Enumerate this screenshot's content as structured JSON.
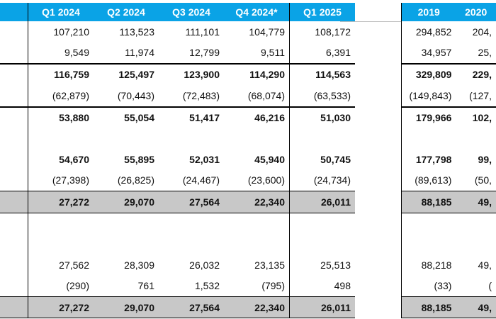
{
  "headers_left": [
    "Q1 2024",
    "Q2 2024",
    "Q3 2024",
    "Q4 2024*",
    "Q1 2025"
  ],
  "headers_right": [
    "2019",
    "2020"
  ],
  "rows": [
    {
      "style": "normal",
      "left": [
        "107,210",
        "113,523",
        "111,101",
        "104,779",
        "108,172"
      ],
      "right": [
        "294,852",
        "204,"
      ]
    },
    {
      "style": "normal",
      "left": [
        "9,549",
        "11,974",
        "12,799",
        "9,511",
        "6,391"
      ],
      "right": [
        "34,957",
        "25,"
      ]
    },
    {
      "style": "bold-top",
      "left": [
        "116,759",
        "125,497",
        "123,900",
        "114,290",
        "114,563"
      ],
      "right": [
        "329,809",
        "229,"
      ]
    },
    {
      "style": "normal",
      "left": [
        "(62,879)",
        "(70,443)",
        "(72,483)",
        "(68,074)",
        "(63,533)"
      ],
      "right": [
        "(149,843)",
        "(127,"
      ]
    },
    {
      "style": "bold-top",
      "left": [
        "53,880",
        "55,054",
        "51,417",
        "46,216",
        "51,030"
      ],
      "right": [
        "179,966",
        "102,"
      ]
    },
    {
      "style": "blank",
      "left": [
        "",
        "",
        "",
        "",
        ""
      ],
      "right": [
        "",
        ""
      ]
    },
    {
      "style": "bold",
      "left": [
        "54,670",
        "55,895",
        "52,031",
        "45,940",
        "50,745"
      ],
      "right": [
        "177,798",
        "99,"
      ]
    },
    {
      "style": "normal",
      "left": [
        "(27,398)",
        "(26,825)",
        "(24,467)",
        "(23,600)",
        "(24,734)"
      ],
      "right": [
        "(89,613)",
        "(50,"
      ]
    },
    {
      "style": "total",
      "left": [
        "27,272",
        "29,070",
        "27,564",
        "22,340",
        "26,011"
      ],
      "right": [
        "88,185",
        "49,"
      ]
    },
    {
      "style": "blank",
      "left": [
        "",
        "",
        "",
        "",
        ""
      ],
      "right": [
        "",
        ""
      ]
    },
    {
      "style": "blank",
      "left": [
        "",
        "",
        "",
        "",
        ""
      ],
      "right": [
        "",
        ""
      ]
    },
    {
      "style": "normal",
      "left": [
        "27,562",
        "28,309",
        "26,032",
        "23,135",
        "25,513"
      ],
      "right": [
        "88,218",
        "49,"
      ]
    },
    {
      "style": "normal",
      "left": [
        "(290)",
        "761",
        "1,532",
        "(795)",
        "498"
      ],
      "right": [
        "(33)",
        "("
      ]
    },
    {
      "style": "total",
      "left": [
        "27,272",
        "29,070",
        "27,564",
        "22,340",
        "26,011"
      ],
      "right": [
        "88,185",
        "49,"
      ]
    }
  ]
}
